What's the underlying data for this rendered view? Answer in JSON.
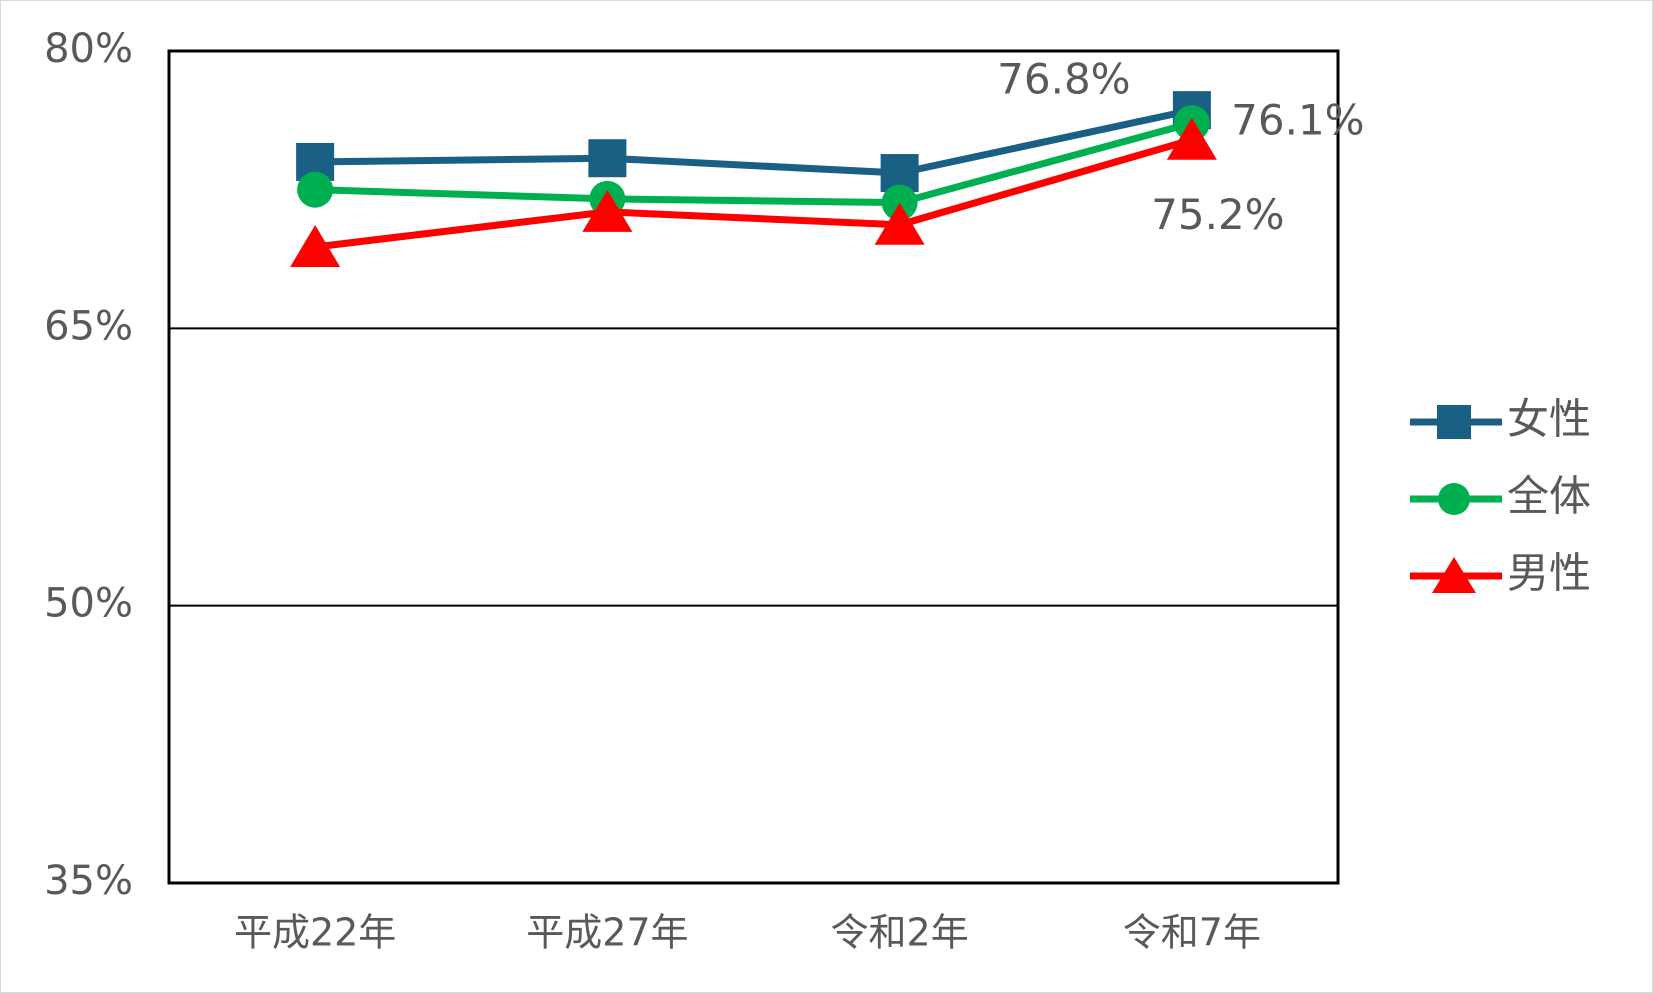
{
  "chart_data": {
    "type": "line",
    "categories": [
      "平成22年",
      "平成27年",
      "令和2年",
      "令和7年"
    ],
    "series": [
      {
        "name": "女性",
        "color": "#1a5f84",
        "marker": "square",
        "values": [
          74.0,
          74.2,
          73.4,
          76.8
        ],
        "value_labels": [
          null,
          null,
          null,
          "76.8%"
        ]
      },
      {
        "name": "全体",
        "color": "#00b050",
        "marker": "circle",
        "values": [
          72.5,
          72.0,
          71.8,
          76.1
        ],
        "value_labels": [
          null,
          null,
          null,
          "76.1%"
        ]
      },
      {
        "name": "男性",
        "color": "#ff0000",
        "marker": "triangle",
        "values": [
          69.4,
          71.3,
          70.6,
          75.2
        ],
        "value_labels": [
          null,
          null,
          null,
          "75.2%"
        ]
      }
    ],
    "ylim": [
      35,
      80
    ],
    "yticks": [
      {
        "value": 35,
        "label": "35%"
      },
      {
        "value": 50,
        "label": "50%"
      },
      {
        "value": 65,
        "label": "65%"
      },
      {
        "value": 80,
        "label": "80%"
      }
    ],
    "grid": true,
    "legend": "right"
  }
}
